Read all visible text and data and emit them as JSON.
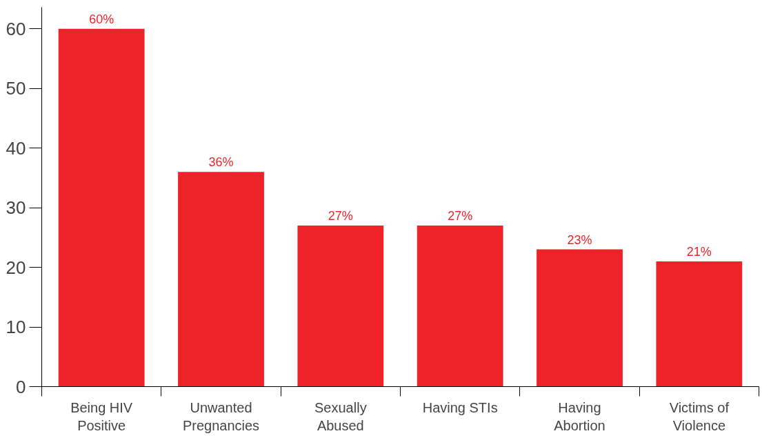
{
  "chart_data": {
    "type": "bar",
    "categories": [
      "Being HIV Positive",
      "Unwanted Pregnancies",
      "Sexually Abused",
      "Having STIs",
      "Having Abortion",
      "Victims of Violence"
    ],
    "values": [
      60,
      36,
      27,
      27,
      23,
      21
    ],
    "value_labels": [
      "60%",
      "36%",
      "27%",
      "27%",
      "23%",
      "21%"
    ],
    "color": "#ee2229",
    "ylim": [
      0,
      60
    ],
    "yticks": [
      0,
      10,
      20,
      30,
      40,
      50,
      60
    ],
    "grid": false
  }
}
